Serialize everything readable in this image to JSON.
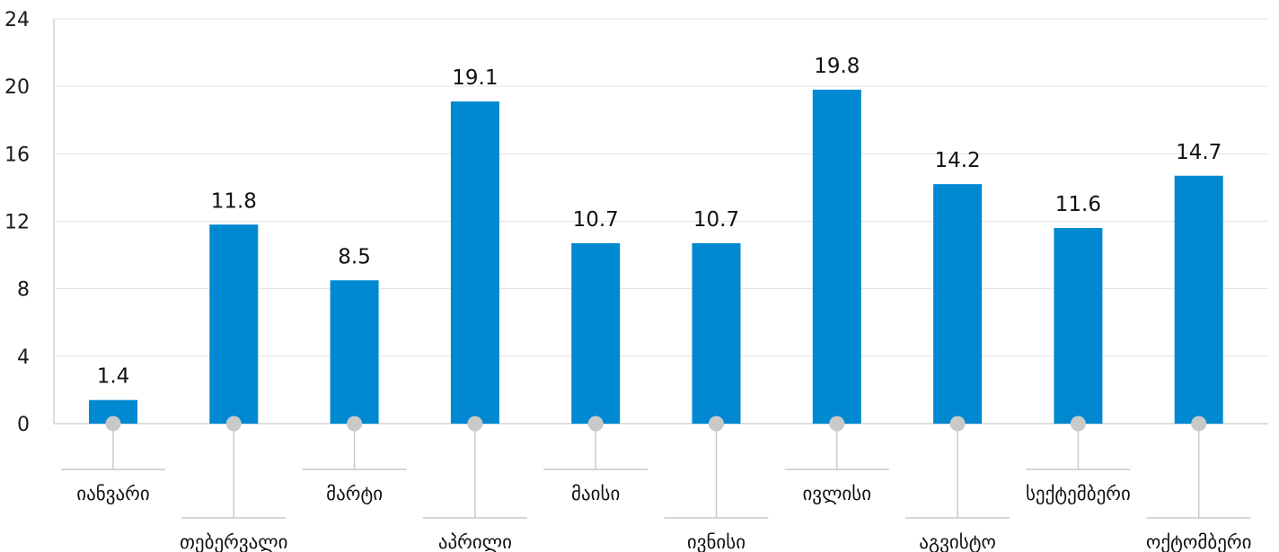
{
  "chart_data": {
    "type": "bar",
    "categories": [
      "იანვარი",
      "თებერვალი",
      "მარტი",
      "აპრილი",
      "მაისი",
      "ივნისი",
      "ივლისი",
      "აგვისტო",
      "სექტემბერი",
      "ოქტომბერი"
    ],
    "values": [
      1.4,
      11.8,
      8.5,
      19.1,
      10.7,
      10.7,
      19.8,
      14.2,
      11.6,
      14.7
    ],
    "data_labels": [
      "1.4",
      "11.8",
      "8.5",
      "19.1",
      "10.7",
      "10.7",
      "19.8",
      "14.2",
      "11.6",
      "14.7"
    ],
    "title": "",
    "xlabel": "",
    "ylabel": "",
    "ylim": [
      0,
      24
    ],
    "yticks": [
      "0",
      "4",
      "8",
      "12",
      "16",
      "20",
      "24"
    ],
    "grid": true,
    "legend": "none",
    "colors": {
      "bar": "#0088d1",
      "grid": "#e3e3e3",
      "axis": "#bdbdbd",
      "marker": "#c9c9c9",
      "leader": "#c9c9c9"
    }
  }
}
